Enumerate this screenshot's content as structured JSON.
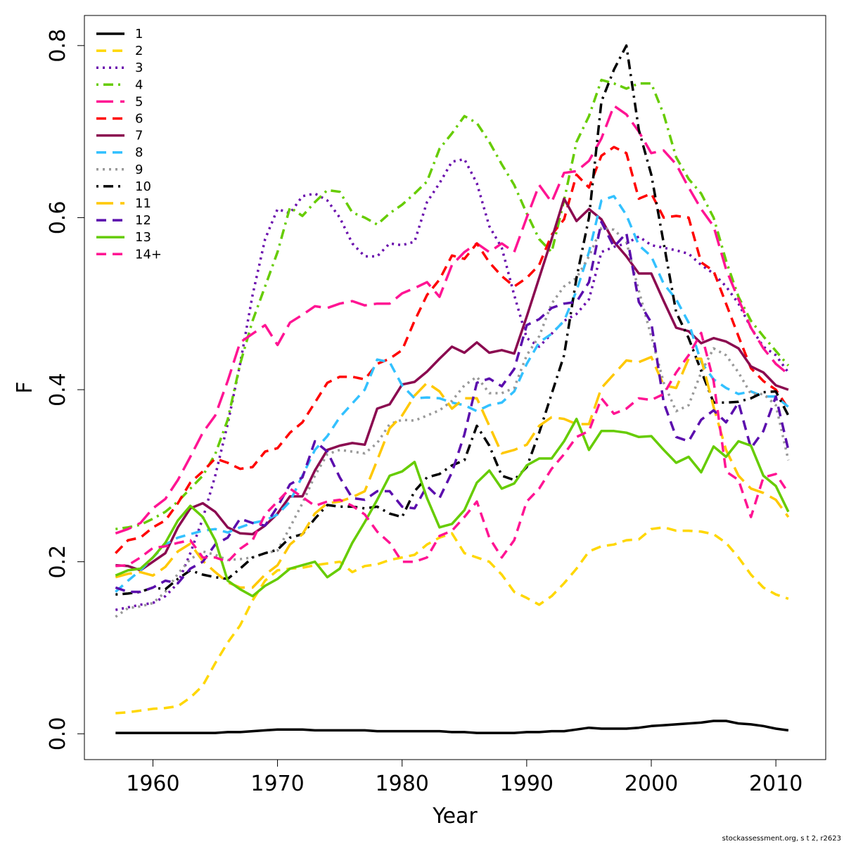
{
  "chart_data": {
    "type": "line",
    "xlabel": "Year",
    "ylabel": "F",
    "xlim": [
      1954.5,
      2014
    ],
    "ylim": [
      -0.03,
      0.835
    ],
    "x_ticks": [
      1960,
      1970,
      1980,
      1990,
      2000,
      2010
    ],
    "y_ticks": [
      0.0,
      0.2,
      0.4,
      0.6,
      0.8
    ],
    "y_tick_labels": [
      "0.0",
      "0.2",
      "0.4",
      "0.6",
      "0.8"
    ],
    "legend_position": "top-left",
    "footer": "stockassessment.org, s  t  2, r2623",
    "x": [
      1957,
      1958,
      1959,
      1960,
      1961,
      1962,
      1963,
      1964,
      1965,
      1966,
      1967,
      1968,
      1969,
      1970,
      1971,
      1972,
      1973,
      1974,
      1975,
      1976,
      1977,
      1978,
      1979,
      1980,
      1981,
      1982,
      1983,
      1984,
      1985,
      1986,
      1987,
      1988,
      1989,
      1990,
      1991,
      1992,
      1993,
      1994,
      1995,
      1996,
      1997,
      1998,
      1999,
      2000,
      2001,
      2002,
      2003,
      2004,
      2005,
      2006,
      2007,
      2008,
      2009,
      2010,
      2011
    ],
    "series": [
      {
        "name": "1",
        "color": "#000000",
        "dash": "solid",
        "values": [
          0.001,
          0.001,
          0.001,
          0.001,
          0.001,
          0.001,
          0.001,
          0.001,
          0.001,
          0.002,
          0.002,
          0.003,
          0.004,
          0.005,
          0.005,
          0.005,
          0.004,
          0.004,
          0.004,
          0.004,
          0.004,
          0.003,
          0.003,
          0.003,
          0.003,
          0.003,
          0.003,
          0.002,
          0.002,
          0.001,
          0.001,
          0.001,
          0.001,
          0.002,
          0.002,
          0.003,
          0.003,
          0.005,
          0.007,
          0.006,
          0.006,
          0.006,
          0.007,
          0.009,
          0.01,
          0.011,
          0.012,
          0.013,
          0.015,
          0.015,
          0.012,
          0.011,
          0.009,
          0.006,
          0.004
        ]
      },
      {
        "name": "2",
        "color": "#FFD700",
        "dash": "dash",
        "values": [
          0.024,
          0.025,
          0.027,
          0.029,
          0.03,
          0.032,
          0.042,
          0.056,
          0.082,
          0.106,
          0.126,
          0.155,
          0.178,
          0.19,
          0.192,
          0.193,
          0.196,
          0.198,
          0.2,
          0.188,
          0.195,
          0.197,
          0.202,
          0.205,
          0.208,
          0.22,
          0.228,
          0.233,
          0.21,
          0.205,
          0.2,
          0.185,
          0.165,
          0.158,
          0.15,
          0.16,
          0.175,
          0.192,
          0.212,
          0.218,
          0.22,
          0.225,
          0.226,
          0.238,
          0.24,
          0.236,
          0.236,
          0.235,
          0.232,
          0.222,
          0.205,
          0.185,
          0.17,
          0.162,
          0.157
        ]
      },
      {
        "name": "3",
        "color": "#6A0DAD",
        "dash": "dot",
        "values": [
          0.144,
          0.147,
          0.15,
          0.152,
          0.16,
          0.175,
          0.21,
          0.25,
          0.3,
          0.36,
          0.43,
          0.51,
          0.575,
          0.61,
          0.605,
          0.625,
          0.628,
          0.62,
          0.6,
          0.57,
          0.555,
          0.555,
          0.57,
          0.568,
          0.572,
          0.618,
          0.64,
          0.665,
          0.668,
          0.64,
          0.59,
          0.565,
          0.51,
          0.46,
          0.45,
          0.465,
          0.48,
          0.488,
          0.505,
          0.56,
          0.566,
          0.57,
          0.578,
          0.568,
          0.565,
          0.562,
          0.558,
          0.545,
          0.535,
          0.52,
          0.5,
          0.472,
          0.45,
          0.44,
          0.42
        ]
      },
      {
        "name": "4",
        "color": "#66CC00",
        "dash": "dashdot",
        "values": [
          0.238,
          0.24,
          0.243,
          0.25,
          0.258,
          0.27,
          0.285,
          0.3,
          0.325,
          0.365,
          0.43,
          0.48,
          0.52,
          0.56,
          0.612,
          0.602,
          0.618,
          0.632,
          0.63,
          0.606,
          0.6,
          0.592,
          0.605,
          0.615,
          0.628,
          0.642,
          0.68,
          0.698,
          0.718,
          0.71,
          0.688,
          0.662,
          0.638,
          0.605,
          0.575,
          0.56,
          0.62,
          0.688,
          0.718,
          0.76,
          0.756,
          0.75,
          0.756,
          0.756,
          0.72,
          0.67,
          0.645,
          0.628,
          0.6,
          0.55,
          0.508,
          0.48,
          0.462,
          0.445,
          0.428
        ]
      },
      {
        "name": "5",
        "color": "#FF1493",
        "dash": "longdash",
        "values": [
          0.233,
          0.238,
          0.245,
          0.262,
          0.273,
          0.295,
          0.322,
          0.35,
          0.37,
          0.41,
          0.455,
          0.465,
          0.475,
          0.452,
          0.478,
          0.487,
          0.497,
          0.495,
          0.5,
          0.503,
          0.498,
          0.5,
          0.5,
          0.512,
          0.518,
          0.525,
          0.508,
          0.545,
          0.56,
          0.57,
          0.56,
          0.57,
          0.56,
          0.6,
          0.638,
          0.618,
          0.652,
          0.654,
          0.666,
          0.692,
          0.73,
          0.72,
          0.7,
          0.675,
          0.678,
          0.662,
          0.635,
          0.61,
          0.59,
          0.54,
          0.505,
          0.472,
          0.448,
          0.43,
          0.418
        ]
      },
      {
        "name": "6",
        "color": "#FF0000",
        "dash": "dash",
        "values": [
          0.21,
          0.225,
          0.228,
          0.24,
          0.248,
          0.268,
          0.292,
          0.305,
          0.32,
          0.315,
          0.308,
          0.31,
          0.328,
          0.332,
          0.35,
          0.362,
          0.385,
          0.408,
          0.415,
          0.415,
          0.412,
          0.43,
          0.436,
          0.446,
          0.48,
          0.51,
          0.528,
          0.556,
          0.552,
          0.57,
          0.548,
          0.532,
          0.52,
          0.53,
          0.545,
          0.58,
          0.598,
          0.65,
          0.635,
          0.672,
          0.682,
          0.675,
          0.622,
          0.628,
          0.6,
          0.602,
          0.6,
          0.548,
          0.538,
          0.5,
          0.462,
          0.425,
          0.41,
          0.4,
          0.378
        ]
      },
      {
        "name": "7",
        "color": "#8B0A50",
        "dash": "solid",
        "values": [
          0.196,
          0.195,
          0.19,
          0.2,
          0.21,
          0.24,
          0.262,
          0.268,
          0.258,
          0.24,
          0.233,
          0.232,
          0.242,
          0.256,
          0.276,
          0.276,
          0.306,
          0.33,
          0.335,
          0.338,
          0.336,
          0.378,
          0.383,
          0.406,
          0.409,
          0.421,
          0.436,
          0.45,
          0.443,
          0.455,
          0.443,
          0.446,
          0.442,
          0.485,
          0.53,
          0.575,
          0.622,
          0.596,
          0.61,
          0.598,
          0.572,
          0.555,
          0.535,
          0.535,
          0.503,
          0.472,
          0.468,
          0.454,
          0.46,
          0.456,
          0.448,
          0.427,
          0.42,
          0.405,
          0.4
        ]
      },
      {
        "name": "8",
        "color": "#33C1FF",
        "dash": "dash",
        "values": [
          0.165,
          0.178,
          0.19,
          0.205,
          0.22,
          0.228,
          0.232,
          0.236,
          0.238,
          0.234,
          0.24,
          0.245,
          0.248,
          0.255,
          0.27,
          0.3,
          0.33,
          0.346,
          0.368,
          0.384,
          0.4,
          0.435,
          0.432,
          0.405,
          0.39,
          0.391,
          0.39,
          0.385,
          0.382,
          0.375,
          0.382,
          0.385,
          0.398,
          0.43,
          0.455,
          0.465,
          0.48,
          0.515,
          0.56,
          0.62,
          0.625,
          0.603,
          0.568,
          0.555,
          0.523,
          0.505,
          0.478,
          0.432,
          0.412,
          0.402,
          0.395,
          0.398,
          0.392,
          0.392,
          0.38
        ]
      },
      {
        "name": "9",
        "color": "#999999",
        "dash": "dot",
        "values": [
          0.136,
          0.146,
          0.148,
          0.152,
          0.165,
          0.186,
          0.203,
          0.212,
          0.208,
          0.202,
          0.203,
          0.205,
          0.21,
          0.213,
          0.24,
          0.268,
          0.3,
          0.325,
          0.33,
          0.328,
          0.326,
          0.338,
          0.36,
          0.365,
          0.364,
          0.37,
          0.376,
          0.387,
          0.405,
          0.415,
          0.396,
          0.396,
          0.402,
          0.44,
          0.462,
          0.5,
          0.52,
          0.53,
          0.555,
          0.588,
          0.586,
          0.572,
          0.515,
          0.462,
          0.408,
          0.375,
          0.382,
          0.42,
          0.448,
          0.44,
          0.42,
          0.395,
          0.395,
          0.382,
          0.318
        ]
      },
      {
        "name": "10",
        "color": "#000000",
        "dash": "dashdot",
        "values": [
          0.162,
          0.163,
          0.165,
          0.17,
          0.168,
          0.18,
          0.19,
          0.185,
          0.182,
          0.18,
          0.192,
          0.205,
          0.21,
          0.214,
          0.228,
          0.232,
          0.25,
          0.266,
          0.264,
          0.264,
          0.262,
          0.264,
          0.256,
          0.252,
          0.282,
          0.298,
          0.302,
          0.312,
          0.318,
          0.358,
          0.335,
          0.3,
          0.295,
          0.31,
          0.35,
          0.395,
          0.44,
          0.53,
          0.6,
          0.735,
          0.772,
          0.8,
          0.702,
          0.65,
          0.57,
          0.49,
          0.46,
          0.422,
          0.385,
          0.385,
          0.386,
          0.39,
          0.397,
          0.398,
          0.37
        ]
      },
      {
        "name": "11",
        "color": "#FFC800",
        "dash": "longdash",
        "values": [
          0.182,
          0.186,
          0.188,
          0.184,
          0.194,
          0.212,
          0.221,
          0.201,
          0.188,
          0.176,
          0.17,
          0.17,
          0.185,
          0.196,
          0.22,
          0.232,
          0.256,
          0.268,
          0.27,
          0.275,
          0.282,
          0.318,
          0.355,
          0.37,
          0.393,
          0.408,
          0.398,
          0.378,
          0.39,
          0.39,
          0.358,
          0.326,
          0.33,
          0.336,
          0.358,
          0.368,
          0.366,
          0.36,
          0.36,
          0.402,
          0.418,
          0.434,
          0.432,
          0.438,
          0.405,
          0.402,
          0.436,
          0.436,
          0.38,
          0.33,
          0.3,
          0.285,
          0.28,
          0.272,
          0.252
        ]
      },
      {
        "name": "12",
        "color": "#5B0DAD",
        "dash": "dash",
        "values": [
          0.17,
          0.165,
          0.165,
          0.17,
          0.178,
          0.175,
          0.192,
          0.2,
          0.22,
          0.228,
          0.25,
          0.245,
          0.242,
          0.264,
          0.29,
          0.298,
          0.34,
          0.328,
          0.298,
          0.274,
          0.272,
          0.282,
          0.282,
          0.264,
          0.262,
          0.288,
          0.274,
          0.304,
          0.348,
          0.408,
          0.413,
          0.404,
          0.424,
          0.475,
          0.482,
          0.495,
          0.5,
          0.502,
          0.525,
          0.595,
          0.566,
          0.582,
          0.502,
          0.478,
          0.385,
          0.345,
          0.34,
          0.365,
          0.376,
          0.362,
          0.385,
          0.332,
          0.352,
          0.392,
          0.33
        ]
      },
      {
        "name": "13",
        "color": "#66CC00",
        "dash": "solid",
        "values": [
          0.184,
          0.19,
          0.192,
          0.205,
          0.222,
          0.248,
          0.265,
          0.252,
          0.225,
          0.178,
          0.168,
          0.16,
          0.172,
          0.18,
          0.192,
          0.196,
          0.2,
          0.182,
          0.192,
          0.222,
          0.246,
          0.272,
          0.3,
          0.305,
          0.316,
          0.274,
          0.24,
          0.244,
          0.26,
          0.292,
          0.306,
          0.285,
          0.291,
          0.312,
          0.32,
          0.32,
          0.34,
          0.366,
          0.33,
          0.352,
          0.352,
          0.35,
          0.345,
          0.346,
          0.33,
          0.315,
          0.322,
          0.304,
          0.334,
          0.322,
          0.34,
          0.335,
          0.3,
          0.288,
          0.258
        ]
      },
      {
        "name": "14+",
        "color": "#FF1493",
        "dash": "dash",
        "values": [
          0.195,
          0.196,
          0.205,
          0.216,
          0.218,
          0.222,
          0.225,
          0.205,
          0.205,
          0.2,
          0.215,
          0.225,
          0.255,
          0.27,
          0.285,
          0.275,
          0.265,
          0.27,
          0.272,
          0.265,
          0.255,
          0.235,
          0.222,
          0.2,
          0.2,
          0.205,
          0.23,
          0.236,
          0.252,
          0.27,
          0.228,
          0.205,
          0.225,
          0.27,
          0.285,
          0.308,
          0.325,
          0.345,
          0.352,
          0.39,
          0.372,
          0.378,
          0.39,
          0.388,
          0.395,
          0.42,
          0.44,
          0.466,
          0.41,
          0.305,
          0.295,
          0.252,
          0.298,
          0.302,
          0.28
        ]
      }
    ]
  }
}
